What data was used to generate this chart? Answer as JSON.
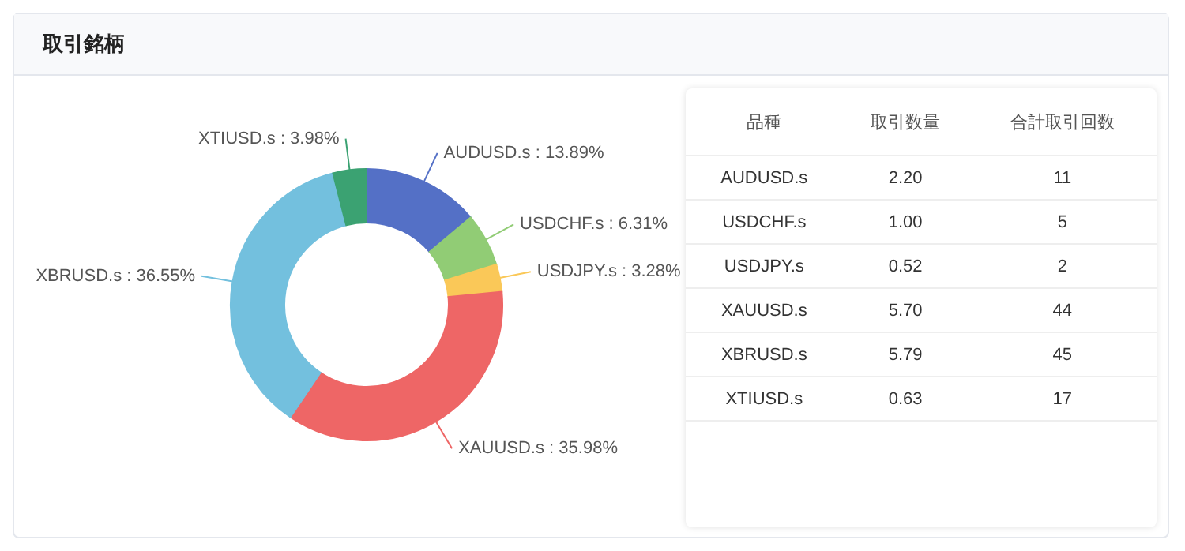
{
  "chart_data": [
    {
      "type": "donut",
      "title": "取引銘柄",
      "categories": [
        "AUDUSD.s",
        "USDCHF.s",
        "USDJPY.s",
        "XAUUSD.s",
        "XBRUSD.s",
        "XTIUSD.s"
      ],
      "values": [
        13.89,
        6.31,
        3.28,
        35.98,
        36.55,
        3.98
      ],
      "value_labels": [
        "13.89%",
        "6.31%",
        "3.28%",
        "35.98%",
        "36.55%",
        "3.98%"
      ],
      "colors": [
        "#5470c6",
        "#91cc75",
        "#fac858",
        "#ee6666",
        "#73c0de",
        "#3ba272"
      ]
    },
    {
      "type": "other",
      "xlabel": "品種",
      "categories": [
        "AUDUSD.s",
        "USDCHF.s",
        "USDJPY.s",
        "XAUUSD.s",
        "XBRUSD.s",
        "XTIUSD.s"
      ],
      "series": [
        {
          "name": "取引数量",
          "values": [
            2.2,
            1.0,
            0.52,
            5.7,
            5.79,
            0.63
          ],
          "value_labels": [
            "2.20",
            "1.00",
            "0.52",
            "5.70",
            "5.79",
            "0.63"
          ]
        },
        {
          "name": "合計取引回数",
          "values": [
            11,
            5,
            2,
            44,
            45,
            17
          ]
        }
      ],
      "data_labels": true
    }
  ]
}
